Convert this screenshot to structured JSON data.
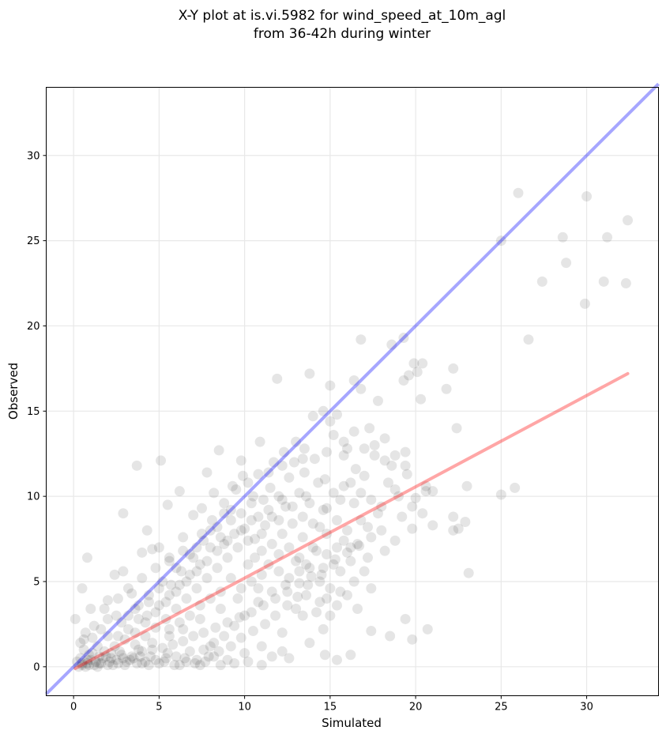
{
  "chart_data": {
    "type": "scatter",
    "title_lines": [
      "X-Y plot at is.vi.5982 for wind_speed_at_10m_agl",
      "from 36-42h during winter"
    ],
    "xlabel": "Simulated",
    "ylabel": "Observed",
    "xlim": [
      -1.6,
      34.2
    ],
    "ylim": [
      -1.7,
      34.0
    ],
    "xticks": [
      0,
      5,
      10,
      15,
      20,
      25,
      30
    ],
    "yticks": [
      0,
      5,
      10,
      15,
      20,
      25,
      30
    ],
    "grid": true,
    "point_color": "#000000",
    "point_alpha": 0.1,
    "identity_line": {
      "color": "#0000ff",
      "alpha": 0.35,
      "x": [
        -1.6,
        34.2
      ],
      "y": [
        -1.6,
        34.2
      ]
    },
    "fit_line": {
      "color": "#ff0000",
      "alpha": 0.35,
      "x": [
        0.1,
        32.4
      ],
      "y": [
        -0.1,
        17.2
      ]
    },
    "points": [
      [
        26.0,
        27.8
      ],
      [
        30.0,
        27.6
      ],
      [
        32.4,
        26.2
      ],
      [
        28.6,
        25.2
      ],
      [
        31.2,
        25.2
      ],
      [
        28.8,
        23.7
      ],
      [
        25.0,
        25.0
      ],
      [
        27.4,
        22.6
      ],
      [
        31.0,
        22.6
      ],
      [
        32.3,
        22.5
      ],
      [
        29.9,
        21.3
      ],
      [
        26.6,
        19.2
      ],
      [
        16.8,
        19.2
      ],
      [
        19.3,
        19.3
      ],
      [
        18.6,
        18.9
      ],
      [
        11.9,
        16.9
      ],
      [
        13.8,
        17.2
      ],
      [
        16.4,
        16.8
      ],
      [
        19.9,
        17.8
      ],
      [
        20.4,
        17.8
      ],
      [
        19.6,
        17.1
      ],
      [
        20.1,
        17.3
      ],
      [
        22.2,
        17.5
      ],
      [
        21.8,
        16.3
      ],
      [
        19.3,
        16.8
      ],
      [
        15.0,
        16.5
      ],
      [
        16.8,
        16.3
      ],
      [
        20.3,
        15.7
      ],
      [
        17.8,
        15.6
      ],
      [
        14.6,
        15.0
      ],
      [
        15.4,
        14.8
      ],
      [
        22.4,
        14.0
      ],
      [
        17.3,
        14.0
      ],
      [
        15.0,
        14.4
      ],
      [
        14.0,
        14.7
      ],
      [
        13.0,
        13.2
      ],
      [
        10.9,
        13.2
      ],
      [
        13.5,
        12.8
      ],
      [
        15.8,
        12.4
      ],
      [
        5.1,
        12.1
      ],
      [
        9.8,
        12.1
      ],
      [
        18.2,
        12.1
      ],
      [
        19.4,
        12.6
      ],
      [
        8.5,
        12.7
      ],
      [
        3.7,
        11.8
      ],
      [
        7.8,
        11.4
      ],
      [
        16.5,
        11.6
      ],
      [
        19.5,
        11.3
      ],
      [
        23.0,
        10.6
      ],
      [
        25.8,
        10.5
      ],
      [
        25.0,
        10.1
      ],
      [
        6.2,
        10.3
      ],
      [
        20.6,
        10.3
      ],
      [
        18.8,
        10.4
      ],
      [
        20.0,
        9.9
      ],
      [
        21.0,
        10.3
      ],
      [
        2.9,
        9.0
      ],
      [
        5.5,
        9.5
      ],
      [
        19.8,
        8.1
      ],
      [
        21.0,
        8.3
      ],
      [
        22.2,
        8.8
      ],
      [
        22.9,
        8.5
      ],
      [
        22.2,
        8.0
      ],
      [
        22.5,
        8.1
      ],
      [
        23.1,
        5.5
      ],
      [
        0.8,
        6.4
      ],
      [
        0.5,
        4.6
      ],
      [
        20.7,
        2.2
      ],
      [
        19.4,
        2.8
      ],
      [
        19.8,
        1.6
      ],
      [
        18.5,
        1.8
      ],
      [
        17.4,
        2.1
      ],
      [
        16.2,
        0.7
      ],
      [
        15.4,
        0.4
      ],
      [
        14.7,
        0.7
      ],
      [
        0.1,
        2.8
      ],
      [
        0.6,
        1.6
      ],
      [
        1.0,
        3.4
      ],
      [
        2.0,
        3.9
      ],
      [
        2.4,
        5.4
      ],
      [
        2.9,
        5.6
      ],
      [
        3.4,
        4.3
      ],
      [
        4.0,
        6.7
      ],
      [
        4.6,
        6.9
      ],
      [
        4.3,
        8.0
      ],
      [
        5.0,
        7.0
      ],
      [
        5.6,
        6.2
      ],
      [
        6.4,
        7.6
      ],
      [
        7.0,
        8.9
      ],
      [
        7.5,
        9.3
      ],
      [
        8.2,
        10.2
      ],
      [
        8.8,
        9.0
      ],
      [
        9.5,
        10.4
      ],
      [
        10.2,
        10.8
      ],
      [
        10.8,
        11.3
      ],
      [
        11.5,
        10.5
      ],
      [
        12.0,
        10.0
      ],
      [
        12.6,
        11.1
      ],
      [
        13.2,
        10.2
      ],
      [
        13.8,
        9.6
      ],
      [
        14.3,
        10.8
      ],
      [
        14.8,
        9.3
      ],
      [
        15.4,
        8.6
      ],
      [
        16.0,
        8.0
      ],
      [
        16.6,
        7.2
      ],
      [
        17.2,
        6.4
      ],
      [
        15.2,
        6.0
      ],
      [
        14.5,
        5.4
      ],
      [
        13.7,
        4.8
      ],
      [
        13.1,
        4.1
      ],
      [
        12.5,
        3.6
      ],
      [
        11.8,
        3.0
      ],
      [
        11.2,
        2.5
      ],
      [
        10.5,
        2.1
      ],
      [
        9.8,
        1.7
      ],
      [
        9.2,
        1.2
      ],
      [
        8.5,
        0.9
      ],
      [
        7.9,
        0.6
      ],
      [
        7.2,
        0.4
      ],
      [
        6.6,
        0.3
      ],
      [
        6.0,
        0.6
      ],
      [
        5.4,
        0.5
      ],
      [
        4.8,
        0.4
      ],
      [
        4.2,
        0.3
      ],
      [
        3.7,
        0.2
      ],
      [
        3.1,
        0.3
      ],
      [
        2.6,
        0.2
      ],
      [
        2.1,
        0.3
      ],
      [
        1.6,
        0.2
      ],
      [
        1.2,
        0.1
      ],
      [
        0.8,
        0.2
      ],
      [
        0.5,
        0.1
      ],
      [
        0.3,
        0.0
      ],
      [
        1.0,
        0.4
      ],
      [
        1.5,
        0.6
      ],
      [
        2.2,
        0.5
      ],
      [
        2.8,
        0.7
      ],
      [
        3.4,
        0.6
      ],
      [
        4.0,
        0.9
      ],
      [
        4.6,
        1.0
      ],
      [
        5.2,
        1.1
      ],
      [
        5.8,
        1.3
      ],
      [
        6.4,
        1.5
      ],
      [
        7.0,
        1.8
      ],
      [
        7.6,
        2.0
      ],
      [
        8.3,
        2.3
      ],
      [
        9.0,
        2.6
      ],
      [
        9.7,
        2.9
      ],
      [
        10.4,
        3.2
      ],
      [
        11.1,
        3.6
      ],
      [
        11.8,
        4.0
      ],
      [
        12.5,
        4.4
      ],
      [
        13.2,
        4.9
      ],
      [
        13.9,
        5.3
      ],
      [
        14.6,
        5.8
      ],
      [
        15.3,
        6.3
      ],
      [
        16.0,
        6.7
      ],
      [
        16.7,
        7.1
      ],
      [
        17.4,
        7.6
      ],
      [
        18.0,
        8.0
      ],
      [
        8.8,
        7.2
      ],
      [
        9.4,
        7.8
      ],
      [
        10.0,
        8.1
      ],
      [
        10.6,
        7.5
      ],
      [
        11.2,
        8.3
      ],
      [
        9.0,
        6.4
      ],
      [
        8.4,
        5.8
      ],
      [
        7.8,
        5.2
      ],
      [
        7.2,
        4.6
      ],
      [
        6.6,
        4.0
      ],
      [
        6.0,
        3.4
      ],
      [
        5.4,
        2.8
      ],
      [
        4.8,
        2.3
      ],
      [
        4.2,
        1.8
      ],
      [
        3.6,
        1.3
      ],
      [
        10.2,
        6.0
      ],
      [
        11.0,
        6.8
      ],
      [
        11.6,
        7.2
      ],
      [
        12.2,
        7.8
      ],
      [
        12.8,
        8.4
      ],
      [
        13.4,
        8.8
      ],
      [
        14.0,
        7.0
      ],
      [
        13.0,
        6.2
      ],
      [
        12.0,
        5.6
      ],
      [
        10.8,
        4.6
      ],
      [
        9.6,
        4.0
      ],
      [
        8.6,
        3.4
      ],
      [
        7.4,
        2.8
      ],
      [
        6.4,
        2.2
      ],
      [
        5.6,
        1.8
      ],
      [
        4.6,
        1.4
      ],
      [
        3.8,
        1.0
      ],
      [
        9.2,
        8.6
      ],
      [
        8.4,
        8.2
      ],
      [
        7.6,
        7.4
      ],
      [
        6.8,
        6.6
      ],
      [
        6.0,
        5.8
      ],
      [
        5.2,
        5.0
      ],
      [
        4.4,
        4.2
      ],
      [
        3.6,
        3.4
      ],
      [
        2.8,
        2.6
      ],
      [
        2.0,
        1.8
      ],
      [
        1.4,
        1.2
      ],
      [
        0.9,
        0.7
      ],
      [
        12.4,
        9.4
      ],
      [
        13.6,
        10.0
      ],
      [
        14.4,
        8.2
      ],
      [
        15.6,
        9.8
      ],
      [
        16.2,
        10.8
      ],
      [
        17.0,
        11.2
      ],
      [
        18.4,
        10.8
      ],
      [
        17.8,
        9.0
      ],
      [
        16.8,
        8.6
      ],
      [
        15.8,
        7.4
      ],
      [
        14.8,
        6.6
      ],
      [
        16.4,
        5.0
      ],
      [
        15.6,
        4.4
      ],
      [
        14.4,
        3.8
      ],
      [
        13.4,
        3.0
      ],
      [
        12.2,
        2.0
      ],
      [
        11.0,
        1.2
      ],
      [
        10.0,
        0.8
      ],
      [
        9.0,
        0.4
      ],
      [
        12.6,
        0.5
      ],
      [
        13.8,
        1.4
      ],
      [
        14.6,
        2.2
      ],
      [
        15.0,
        3.0
      ],
      [
        16.6,
        3.4
      ],
      [
        17.4,
        4.6
      ],
      [
        17.0,
        5.6
      ],
      [
        18.2,
        6.8
      ],
      [
        18.8,
        7.4
      ],
      [
        19.2,
        8.8
      ],
      [
        19.8,
        9.4
      ],
      [
        20.4,
        9.0
      ],
      [
        20.6,
        10.6
      ],
      [
        19.0,
        10.0
      ],
      [
        18.6,
        11.8
      ],
      [
        17.6,
        12.4
      ],
      [
        16.0,
        12.8
      ],
      [
        14.8,
        12.6
      ],
      [
        13.4,
        12.2
      ],
      [
        12.2,
        11.8
      ],
      [
        11.4,
        11.4
      ],
      [
        10.4,
        9.6
      ],
      [
        9.8,
        9.0
      ],
      [
        8.0,
        8.0
      ],
      [
        7.2,
        7.0
      ],
      [
        6.4,
        6.8
      ],
      [
        5.6,
        6.4
      ],
      [
        4.8,
        5.8
      ],
      [
        4.0,
        5.2
      ],
      [
        3.2,
        4.6
      ],
      [
        2.6,
        4.0
      ],
      [
        1.8,
        3.4
      ],
      [
        1.2,
        2.4
      ],
      [
        0.6,
        1.0
      ],
      [
        1.8,
        0.9
      ],
      [
        2.4,
        1.2
      ],
      [
        3.0,
        1.6
      ],
      [
        3.6,
        2.0
      ],
      [
        4.2,
        2.6
      ],
      [
        4.8,
        3.2
      ],
      [
        5.4,
        3.8
      ],
      [
        6.0,
        4.4
      ],
      [
        6.6,
        5.0
      ],
      [
        7.2,
        5.6
      ],
      [
        7.8,
        6.2
      ],
      [
        8.4,
        6.8
      ],
      [
        9.0,
        7.4
      ],
      [
        9.6,
        7.0
      ],
      [
        10.2,
        7.4
      ],
      [
        10.8,
        8.8
      ],
      [
        11.4,
        9.2
      ],
      [
        12.0,
        8.6
      ],
      [
        12.6,
        7.0
      ],
      [
        13.2,
        6.4
      ],
      [
        13.8,
        5.8
      ],
      [
        14.4,
        5.0
      ],
      [
        15.0,
        4.6
      ],
      [
        15.6,
        5.6
      ],
      [
        16.2,
        6.2
      ],
      [
        2.0,
        0.1
      ],
      [
        2.5,
        0.4
      ],
      [
        3.0,
        0.1
      ],
      [
        3.5,
        0.5
      ],
      [
        4.0,
        0.2
      ],
      [
        4.5,
        0.6
      ],
      [
        5.0,
        0.2
      ],
      [
        5.5,
        0.8
      ],
      [
        6.2,
        0.1
      ],
      [
        6.8,
        0.9
      ],
      [
        7.4,
        0.1
      ],
      [
        8.0,
        1.2
      ],
      [
        8.6,
        0.1
      ],
      [
        9.4,
        0.2
      ],
      [
        10.2,
        0.3
      ],
      [
        11.0,
        0.1
      ],
      [
        11.6,
        0.6
      ],
      [
        12.2,
        0.9
      ],
      [
        0.4,
        0.5
      ],
      [
        0.7,
        0.0
      ],
      [
        1.1,
        0.8
      ],
      [
        1.3,
        0.3
      ],
      [
        1.7,
        0.5
      ],
      [
        2.2,
        0.8
      ],
      [
        0.2,
        0.3
      ],
      [
        0.9,
        0.1
      ],
      [
        1.4,
        0.0
      ],
      [
        1.9,
        0.6
      ],
      [
        2.7,
        0.9
      ],
      [
        3.3,
        0.4
      ],
      [
        0.5,
        0.2
      ],
      [
        0.8,
        0.4
      ],
      [
        1.5,
        0.2
      ],
      [
        2.3,
        0.1
      ],
      [
        2.9,
        0.5
      ],
      [
        3.9,
        0.6
      ],
      [
        4.4,
        0.1
      ],
      [
        5.3,
        0.3
      ],
      [
        5.9,
        0.1
      ],
      [
        6.5,
        0.5
      ],
      [
        7.1,
        0.2
      ],
      [
        7.7,
        0.3
      ],
      [
        8.2,
        0.6
      ],
      [
        0.4,
        1.4
      ],
      [
        0.7,
        2.0
      ],
      [
        1.1,
        1.7
      ],
      [
        1.6,
        2.2
      ],
      [
        2.0,
        2.8
      ],
      [
        2.5,
        3.0
      ],
      [
        3.2,
        3.0
      ],
      [
        3.8,
        3.6
      ],
      [
        4.3,
        3.0
      ],
      [
        5.0,
        3.6
      ],
      [
        5.7,
        4.8
      ],
      [
        6.3,
        5.6
      ],
      [
        7.0,
        6.4
      ],
      [
        7.5,
        7.8
      ],
      [
        8.1,
        8.6
      ],
      [
        8.8,
        9.6
      ],
      [
        9.3,
        10.6
      ],
      [
        9.9,
        11.2
      ],
      [
        10.5,
        10.0
      ],
      [
        11.1,
        9.8
      ],
      [
        11.7,
        12.0
      ],
      [
        12.3,
        12.6
      ],
      [
        12.9,
        12.0
      ],
      [
        13.5,
        11.4
      ],
      [
        14.1,
        12.2
      ],
      [
        14.7,
        11.0
      ],
      [
        15.2,
        13.6
      ],
      [
        15.8,
        13.2
      ],
      [
        16.4,
        13.8
      ],
      [
        17.0,
        12.8
      ],
      [
        17.6,
        13.0
      ],
      [
        18.2,
        13.4
      ],
      [
        18.8,
        12.4
      ],
      [
        19.4,
        11.8
      ],
      [
        11.0,
        5.4
      ],
      [
        10.4,
        5.0
      ],
      [
        9.8,
        4.6
      ],
      [
        9.2,
        5.2
      ],
      [
        8.6,
        4.4
      ],
      [
        8.0,
        4.0
      ],
      [
        7.4,
        3.6
      ],
      [
        6.8,
        3.0
      ],
      [
        6.2,
        2.6
      ],
      [
        5.6,
        2.2
      ],
      [
        10.6,
        6.4
      ],
      [
        11.4,
        6.0
      ],
      [
        12.0,
        6.6
      ],
      [
        12.6,
        5.2
      ],
      [
        13.2,
        5.6
      ],
      [
        11.6,
        4.4
      ],
      [
        12.4,
        4.8
      ],
      [
        13.0,
        3.4
      ],
      [
        13.6,
        4.2
      ],
      [
        14.2,
        3.2
      ],
      [
        14.8,
        4.0
      ],
      [
        15.4,
        3.6
      ],
      [
        16.0,
        4.2
      ],
      [
        10.8,
        3.8
      ],
      [
        10.0,
        3.0
      ],
      [
        9.4,
        2.4
      ],
      [
        8.8,
        1.8
      ],
      [
        8.2,
        1.4
      ],
      [
        7.6,
        1.0
      ],
      [
        13.4,
        7.6
      ],
      [
        14.0,
        8.4
      ],
      [
        14.6,
        9.2
      ],
      [
        15.2,
        10.2
      ],
      [
        15.8,
        10.6
      ],
      [
        16.4,
        9.6
      ],
      [
        16.8,
        10.2
      ],
      [
        17.4,
        9.8
      ],
      [
        18.0,
        9.4
      ],
      [
        17.2,
        8.2
      ],
      [
        16.2,
        7.0
      ],
      [
        15.4,
        7.0
      ],
      [
        14.8,
        7.8
      ],
      [
        14.2,
        6.8
      ],
      [
        13.6,
        6.0
      ],
      [
        12.8,
        9.4
      ],
      [
        12.2,
        9.8
      ],
      [
        11.6,
        8.8
      ],
      [
        11.0,
        7.8
      ],
      [
        10.4,
        8.6
      ],
      [
        9.8,
        8.0
      ],
      [
        9.2,
        9.2
      ],
      [
        8.6,
        7.6
      ],
      [
        8.0,
        7.0
      ],
      [
        7.4,
        6.0
      ],
      [
        6.8,
        5.4
      ],
      [
        6.2,
        4.8
      ],
      [
        5.6,
        4.2
      ],
      [
        5.0,
        4.6
      ],
      [
        4.4,
        3.8
      ],
      [
        3.8,
        2.8
      ],
      [
        3.2,
        2.2
      ],
      [
        2.6,
        1.8
      ]
    ]
  }
}
